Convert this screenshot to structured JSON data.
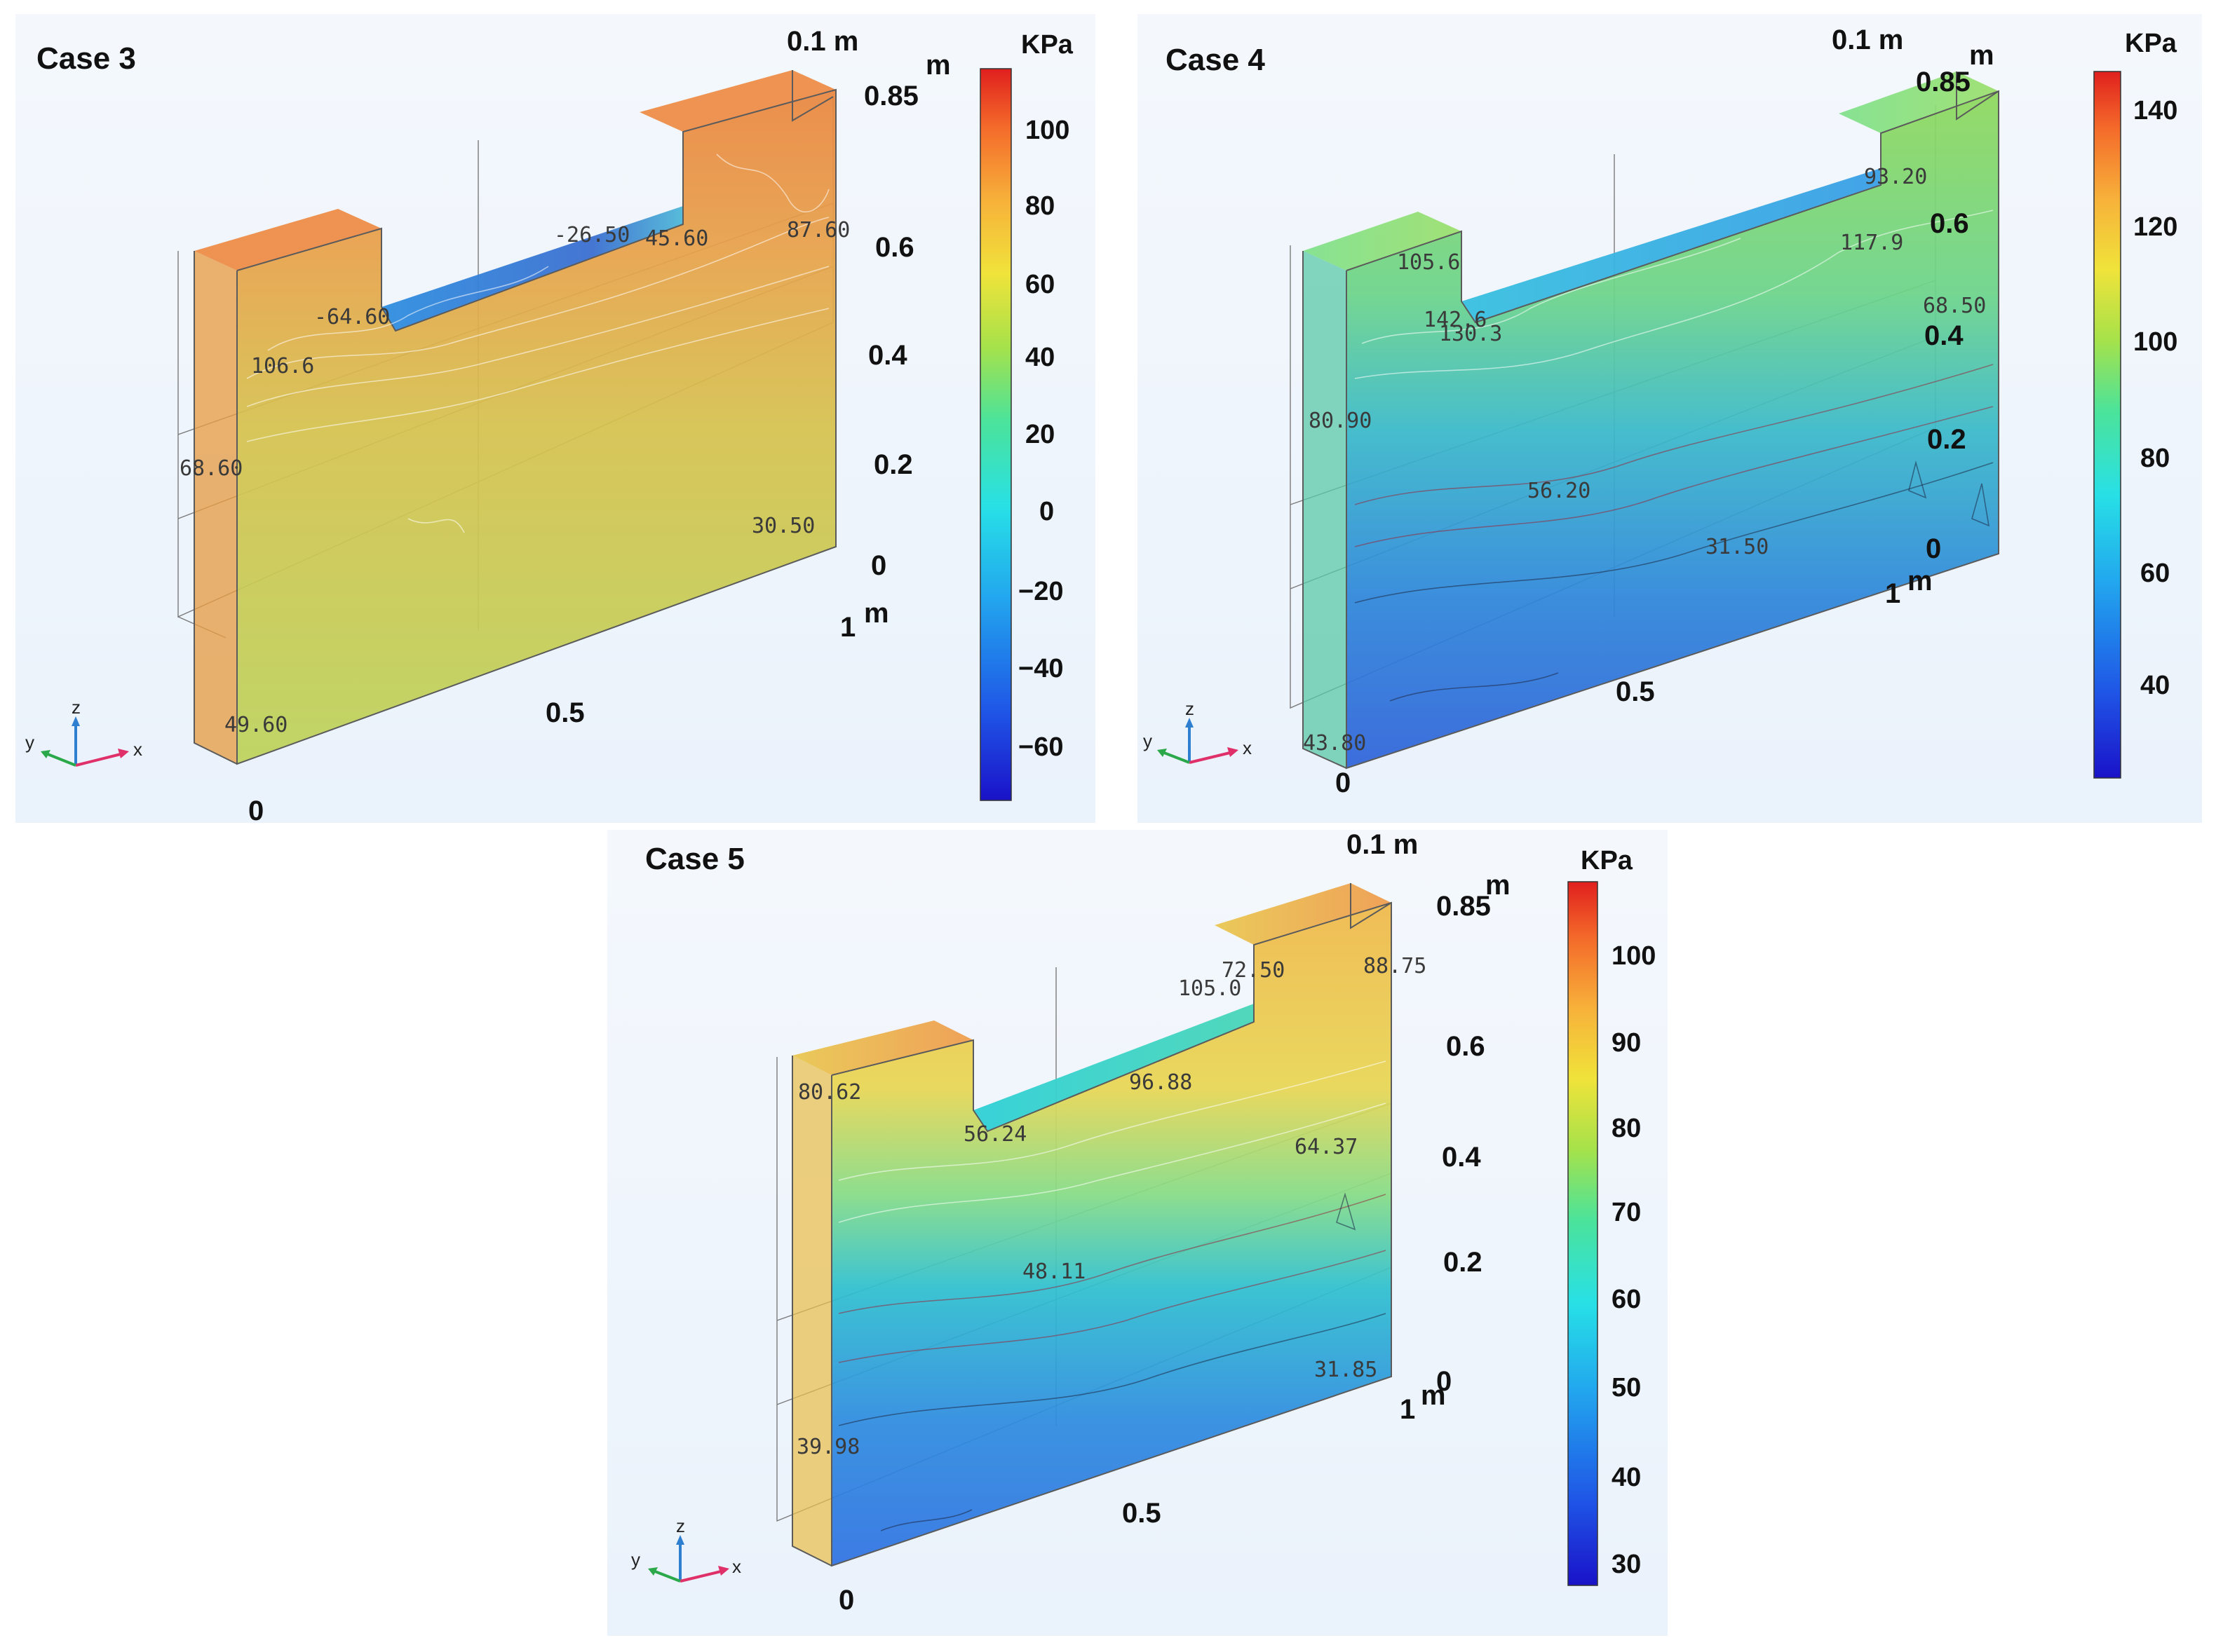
{
  "figure": {
    "case3": {
      "title": "Case 3",
      "axis": {
        "depth_label": "0.1 m",
        "z_unit": "m",
        "z_ticks": [
          "0.85",
          "0.6",
          "0.4",
          "0.2",
          "0"
        ],
        "x_end": "1",
        "x_unit": "m",
        "x_mid": "0.5",
        "x_start": "0"
      },
      "colorbar": {
        "unit": "KPa",
        "ticks": [
          "100",
          "80",
          "60",
          "40",
          "20",
          "0",
          "−20",
          "−40",
          "−60"
        ]
      },
      "annotations": [
        "-26.50",
        "45.60",
        "87.60",
        "-64.60",
        "106.6",
        "68.60",
        "30.50",
        "49.60"
      ],
      "triad": {
        "x": "x",
        "y": "y",
        "z": "z"
      },
      "colors": {
        "front_top": "#e98a3c",
        "front_mid": "#d9b64a",
        "front_bottom": "#bfd25a",
        "slot": "#3b7fd4"
      }
    },
    "case4": {
      "title": "Case 4",
      "axis": {
        "depth_label": "0.1 m",
        "z_unit": "m",
        "z_ticks": [
          "0.85",
          "0.6",
          "0.4",
          "0.2",
          "0"
        ],
        "x_end": "1",
        "x_unit": "m",
        "x_mid": "0.5",
        "x_start": "0"
      },
      "colorbar": {
        "unit": "KPa",
        "ticks": [
          "140",
          "120",
          "100",
          "80",
          "60",
          "40"
        ]
      },
      "annotations": [
        "93.20",
        "105.6",
        "117.9",
        "142.6",
        "130.3",
        "68.50",
        "80.90",
        "56.20",
        "31.50",
        "43.80"
      ],
      "triad": {
        "x": "x",
        "y": "y",
        "z": "z"
      },
      "colors": {
        "front_top": "#9fd85a",
        "front_mid": "#3fb8c8",
        "front_bottom": "#2f6fd8",
        "slot": "#35a8e0"
      }
    },
    "case5": {
      "title": "Case 5",
      "axis": {
        "depth_label": "0.1 m",
        "z_unit": "m",
        "z_ticks": [
          "0.85",
          "0.6",
          "0.4",
          "0.2",
          "0"
        ],
        "x_end": "1",
        "x_unit": "m",
        "x_mid": "0.5",
        "x_start": "0"
      },
      "colorbar": {
        "unit": "KPa",
        "ticks": [
          "100",
          "90",
          "80",
          "70",
          "60",
          "50",
          "40",
          "30"
        ]
      },
      "annotations": [
        "72.50",
        "88.75",
        "105.0",
        "80.62",
        "96.88",
        "56.24",
        "64.37",
        "48.11",
        "31.85",
        "39.98"
      ],
      "triad": {
        "x": "x",
        "y": "y",
        "z": "z"
      },
      "colors": {
        "front_top": "#efc44a",
        "front_mid": "#3fc0c8",
        "front_bottom": "#2e7be0",
        "slot": "#32cfd6"
      }
    }
  }
}
